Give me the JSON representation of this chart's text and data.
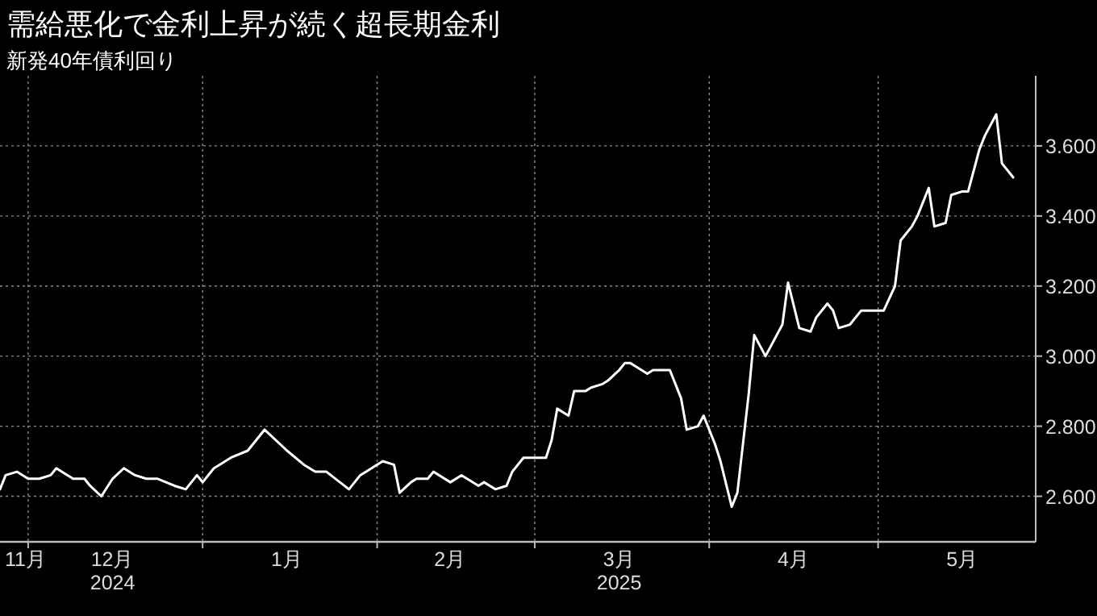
{
  "chart_data": {
    "type": "line",
    "title": "需給悪化で金利上昇が続く超長期金利",
    "subtitle": "新発40年債利回り",
    "x": [
      "2024-11-26",
      "2024-11-27",
      "2024-11-29",
      "2024-12-01",
      "2024-12-03",
      "2024-12-05",
      "2024-12-06",
      "2024-12-08",
      "2024-12-09",
      "2024-12-11",
      "2024-12-12",
      "2024-12-14",
      "2024-12-16",
      "2024-12-18",
      "2024-12-20",
      "2024-12-22",
      "2024-12-24",
      "2024-12-27",
      "2024-12-29",
      "2024-12-31",
      "2025-01-01",
      "2025-01-03",
      "2025-01-04",
      "2025-01-06",
      "2025-01-09",
      "2025-01-12",
      "2025-01-16",
      "2025-01-19",
      "2025-01-21",
      "2025-01-23",
      "2025-01-27",
      "2025-01-29",
      "2025-02-02",
      "2025-02-04",
      "2025-02-05",
      "2025-02-07",
      "2025-02-08",
      "2025-02-10",
      "2025-02-11",
      "2025-02-14",
      "2025-02-16",
      "2025-02-19",
      "2025-02-20",
      "2025-02-22",
      "2025-02-24",
      "2025-02-25",
      "2025-02-27",
      "2025-03-01",
      "2025-03-03",
      "2025-03-04",
      "2025-03-05",
      "2025-03-07",
      "2025-03-08",
      "2025-03-10",
      "2025-03-11",
      "2025-03-13",
      "2025-03-14",
      "2025-03-16",
      "2025-03-17",
      "2025-03-18",
      "2025-03-19",
      "2025-03-21",
      "2025-03-22",
      "2025-03-25",
      "2025-03-27",
      "2025-03-28",
      "2025-03-30",
      "2025-03-31",
      "2025-04-02",
      "2025-04-03",
      "2025-04-05",
      "2025-04-06",
      "2025-04-08",
      "2025-04-09",
      "2025-04-11",
      "2025-04-12",
      "2025-04-14",
      "2025-04-15",
      "2025-04-17",
      "2025-04-19",
      "2025-04-20",
      "2025-04-22",
      "2025-04-23",
      "2025-04-24",
      "2025-04-26",
      "2025-04-28",
      "2025-04-29",
      "2025-05-02",
      "2025-05-04",
      "2025-05-05",
      "2025-05-07",
      "2025-05-08",
      "2025-05-10",
      "2025-05-11",
      "2025-05-13",
      "2025-05-14",
      "2025-05-16",
      "2025-05-17",
      "2025-05-19",
      "2025-05-20",
      "2025-05-22",
      "2025-05-23",
      "2025-05-25"
    ],
    "series": [
      {
        "color": "#ffffff",
        "values": [
          2.62,
          2.66,
          2.67,
          2.65,
          2.65,
          2.66,
          2.68,
          2.66,
          2.65,
          2.65,
          2.63,
          2.6,
          2.65,
          2.68,
          2.66,
          2.65,
          2.65,
          2.63,
          2.62,
          2.66,
          2.64,
          2.68,
          2.69,
          2.71,
          2.73,
          2.79,
          2.73,
          2.69,
          2.67,
          2.67,
          2.62,
          2.66,
          2.7,
          2.69,
          2.61,
          2.64,
          2.65,
          2.65,
          2.67,
          2.64,
          2.66,
          2.63,
          2.64,
          2.62,
          2.63,
          2.67,
          2.71,
          2.71,
          2.71,
          2.76,
          2.85,
          2.83,
          2.9,
          2.9,
          2.91,
          2.92,
          2.93,
          2.96,
          2.98,
          2.98,
          2.97,
          2.95,
          2.96,
          2.96,
          2.88,
          2.79,
          2.8,
          2.83,
          2.75,
          2.7,
          2.57,
          2.61,
          2.89,
          3.06,
          3.0,
          3.03,
          3.09,
          3.21,
          3.08,
          3.07,
          3.11,
          3.15,
          3.13,
          3.08,
          3.09,
          3.13,
          3.13,
          3.13,
          3.2,
          3.33,
          3.37,
          3.4,
          3.48,
          3.37,
          3.38,
          3.46,
          3.47,
          3.47,
          3.59,
          3.63,
          3.69,
          3.55,
          3.51
        ]
      }
    ],
    "xlim": [
      "2024-11-26",
      "2025-05-29"
    ],
    "xticks": [
      {
        "value": "2024-11-28",
        "label": "11月"
      },
      {
        "value": "2024-12-01",
        "label": null
      },
      {
        "value": "2024-12-16",
        "label": "12月\n2024"
      },
      {
        "value": "2025-01-01",
        "label": null
      },
      {
        "value": "2025-01-16",
        "label": "1月"
      },
      {
        "value": "2025-02-01",
        "label": null
      },
      {
        "value": "2025-02-14",
        "label": "2月"
      },
      {
        "value": "2025-03-01",
        "label": null
      },
      {
        "value": "2025-03-16",
        "label": "3月\n2025"
      },
      {
        "value": "2025-04-01",
        "label": null
      },
      {
        "value": "2025-04-16",
        "label": "4月"
      },
      {
        "value": "2025-05-01",
        "label": null
      },
      {
        "value": "2025-05-16",
        "label": "5月"
      }
    ],
    "ylim": [
      2.47,
      3.8
    ],
    "yticks": [
      {
        "value": 2.6,
        "label": "2.600"
      },
      {
        "value": 2.8,
        "label": "2.800"
      },
      {
        "value": 3.0,
        "label": "3.000"
      },
      {
        "value": 3.2,
        "label": "3.200"
      },
      {
        "value": 3.4,
        "label": "3.400"
      },
      {
        "value": 3.6,
        "label": "3.600"
      }
    ],
    "grid": true,
    "marker": "none",
    "line_style": "solid"
  }
}
